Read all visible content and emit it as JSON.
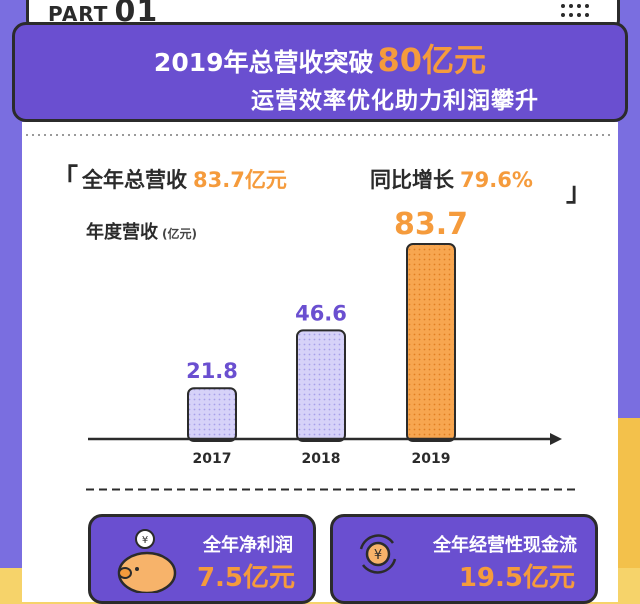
{
  "header": {
    "part_label": "PART",
    "part_number": "01"
  },
  "banner": {
    "line1_prefix": "2019年总营收突破",
    "line1_highlight": "80亿元",
    "line2": "运营效率优化助力利润攀升"
  },
  "stats": {
    "open_bracket": "「",
    "close_bracket": "」",
    "revenue_label": "全年总营收",
    "revenue_value": "83.7亿元",
    "growth_label": "同比增长",
    "growth_value": "79.6%"
  },
  "chart_data": {
    "type": "bar",
    "title": "年度营收",
    "ylabel": "年度营收",
    "unit": "(亿元)",
    "categories": [
      "2017",
      "2018",
      "2019"
    ],
    "values": [
      21.8,
      46.6,
      83.7
    ],
    "value_labels": [
      "21.8",
      "46.6",
      "83.7"
    ],
    "ylim": [
      0,
      83.7
    ],
    "colors": [
      "#c9c4f5",
      "#c9c4f5",
      "#f59b3c"
    ],
    "grid": false,
    "legend": "none"
  },
  "panels": {
    "net_profit_label": "全年净利润",
    "net_profit_value": "7.5亿元",
    "cashflow_label": "全年经营性现金流",
    "cashflow_value": "19.5亿元"
  },
  "colors": {
    "purple": "#6a4fd0",
    "orange": "#f59b3c",
    "lavender": "#c9c4f5",
    "yellow": "#f6d36a",
    "dark": "#2b2b2b"
  }
}
